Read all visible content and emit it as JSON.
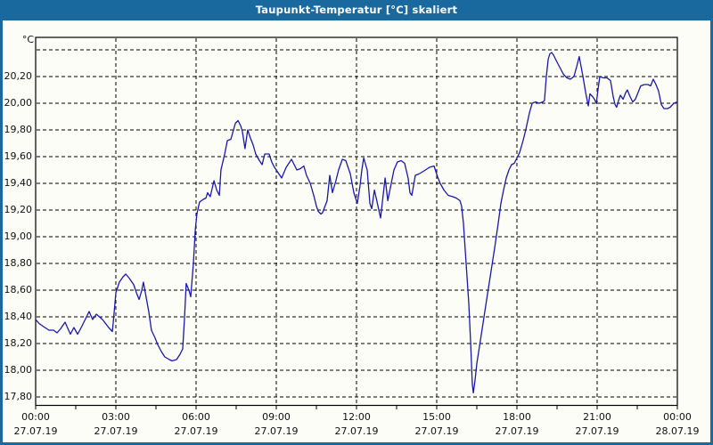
{
  "window": {
    "title": "Taupunkt-Temperatur [°C] skaliert"
  },
  "colors": {
    "titlebar": "#1a699e",
    "window_border": "#1a699e",
    "background": "#fcfdf6",
    "line": "#1818ad",
    "grid": "#000000",
    "title_text": "#ffffff",
    "label_text": "#111111"
  },
  "chart_data": {
    "type": "line",
    "title": "Taupunkt-Temperatur [°C] skaliert",
    "unit_label": "°C",
    "grid": "dashed",
    "legend": "none",
    "x_axis": {
      "range_hours": [
        0,
        24
      ],
      "tick_interval_hours": 3,
      "minor_tick_interval_hours": 1.5,
      "ticks": [
        {
          "time": "00:00",
          "date": "27.07.19"
        },
        {
          "time": "03:00",
          "date": "27.07.19"
        },
        {
          "time": "06:00",
          "date": "27.07.19"
        },
        {
          "time": "09:00",
          "date": "27.07.19"
        },
        {
          "time": "12:00",
          "date": "27.07.19"
        },
        {
          "time": "15:00",
          "date": "27.07.19"
        },
        {
          "time": "18:00",
          "date": "27.07.19"
        },
        {
          "time": "21:00",
          "date": "27.07.19"
        },
        {
          "time": "00:00",
          "date": "28.07.19"
        }
      ]
    },
    "y_axis": {
      "ylim": [
        17.73,
        20.49
      ],
      "tick_interval": 0.2,
      "ticks": [
        {
          "value": 20.4,
          "label": ""
        },
        {
          "value": 20.2,
          "label": "20,20"
        },
        {
          "value": 20.0,
          "label": "20,00"
        },
        {
          "value": 19.8,
          "label": "19,80"
        },
        {
          "value": 19.6,
          "label": "19,60"
        },
        {
          "value": 19.4,
          "label": "19,40"
        },
        {
          "value": 19.2,
          "label": "19,20"
        },
        {
          "value": 19.0,
          "label": "19,00"
        },
        {
          "value": 18.8,
          "label": "18,80"
        },
        {
          "value": 18.6,
          "label": "18,60"
        },
        {
          "value": 18.4,
          "label": "18,40"
        },
        {
          "value": 18.2,
          "label": "18,20"
        },
        {
          "value": 18.0,
          "label": "18,00"
        },
        {
          "value": 17.8,
          "label": "17,80"
        }
      ]
    },
    "series": [
      {
        "name": "Taupunkt-Temperatur",
        "points": [
          [
            0,
            18.38
          ],
          [
            0.13,
            18.35
          ],
          [
            0.27,
            18.33
          ],
          [
            0.5,
            18.3
          ],
          [
            0.67,
            18.3
          ],
          [
            0.8,
            18.28
          ],
          [
            0.93,
            18.31
          ],
          [
            1.1,
            18.36
          ],
          [
            1.3,
            18.27
          ],
          [
            1.43,
            18.32
          ],
          [
            1.57,
            18.27
          ],
          [
            1.73,
            18.33
          ],
          [
            2,
            18.44
          ],
          [
            2.13,
            18.38
          ],
          [
            2.27,
            18.42
          ],
          [
            2.5,
            18.38
          ],
          [
            2.73,
            18.32
          ],
          [
            2.87,
            18.29
          ],
          [
            2.93,
            18.42
          ],
          [
            3,
            18.58
          ],
          [
            3.13,
            18.66
          ],
          [
            3.27,
            18.7
          ],
          [
            3.37,
            18.72
          ],
          [
            3.5,
            18.69
          ],
          [
            3.67,
            18.64
          ],
          [
            3.77,
            18.58
          ],
          [
            3.87,
            18.53
          ],
          [
            3.97,
            18.6
          ],
          [
            4.03,
            18.66
          ],
          [
            4.13,
            18.55
          ],
          [
            4.23,
            18.44
          ],
          [
            4.33,
            18.3
          ],
          [
            4.47,
            18.24
          ],
          [
            4.57,
            18.19
          ],
          [
            4.7,
            18.14
          ],
          [
            4.83,
            18.1
          ],
          [
            5,
            18.08
          ],
          [
            5.1,
            18.07
          ],
          [
            5.27,
            18.08
          ],
          [
            5.4,
            18.12
          ],
          [
            5.5,
            18.16
          ],
          [
            5.57,
            18.4
          ],
          [
            5.63,
            18.65
          ],
          [
            5.73,
            18.6
          ],
          [
            5.8,
            18.55
          ],
          [
            5.9,
            18.8
          ],
          [
            5.97,
            19.05
          ],
          [
            6.03,
            19.17
          ],
          [
            6.13,
            19.26
          ],
          [
            6.27,
            19.28
          ],
          [
            6.37,
            19.29
          ],
          [
            6.43,
            19.33
          ],
          [
            6.53,
            19.3
          ],
          [
            6.67,
            19.42
          ],
          [
            6.77,
            19.35
          ],
          [
            6.87,
            19.31
          ],
          [
            6.93,
            19.5
          ],
          [
            7.07,
            19.62
          ],
          [
            7.17,
            19.72
          ],
          [
            7.3,
            19.73
          ],
          [
            7.4,
            19.8
          ],
          [
            7.47,
            19.85
          ],
          [
            7.57,
            19.87
          ],
          [
            7.67,
            19.83
          ],
          [
            7.73,
            19.79
          ],
          [
            7.83,
            19.66
          ],
          [
            7.93,
            19.8
          ],
          [
            8.03,
            19.74
          ],
          [
            8.13,
            19.69
          ],
          [
            8.23,
            19.62
          ],
          [
            8.37,
            19.57
          ],
          [
            8.47,
            19.54
          ],
          [
            8.57,
            19.62
          ],
          [
            8.73,
            19.62
          ],
          [
            8.83,
            19.56
          ],
          [
            8.93,
            19.52
          ],
          [
            9,
            19.5
          ],
          [
            9.1,
            19.47
          ],
          [
            9.2,
            19.44
          ],
          [
            9.37,
            19.52
          ],
          [
            9.57,
            19.58
          ],
          [
            9.77,
            19.5
          ],
          [
            9.9,
            19.51
          ],
          [
            10.03,
            19.53
          ],
          [
            10.13,
            19.46
          ],
          [
            10.27,
            19.4
          ],
          [
            10.4,
            19.31
          ],
          [
            10.5,
            19.23
          ],
          [
            10.57,
            19.19
          ],
          [
            10.67,
            19.17
          ],
          [
            10.73,
            19.18
          ],
          [
            10.9,
            19.27
          ],
          [
            11,
            19.46
          ],
          [
            11.1,
            19.33
          ],
          [
            11.23,
            19.42
          ],
          [
            11.33,
            19.5
          ],
          [
            11.47,
            19.58
          ],
          [
            11.6,
            19.57
          ],
          [
            11.77,
            19.47
          ],
          [
            11.9,
            19.33
          ],
          [
            12.03,
            19.25
          ],
          [
            12.13,
            19.38
          ],
          [
            12.2,
            19.5
          ],
          [
            12.27,
            19.59
          ],
          [
            12.4,
            19.5
          ],
          [
            12.5,
            19.25
          ],
          [
            12.57,
            19.21
          ],
          [
            12.67,
            19.35
          ],
          [
            12.77,
            19.26
          ],
          [
            12.9,
            19.14
          ],
          [
            13.07,
            19.44
          ],
          [
            13.17,
            19.27
          ],
          [
            13.3,
            19.4
          ],
          [
            13.4,
            19.5
          ],
          [
            13.53,
            19.56
          ],
          [
            13.67,
            19.57
          ],
          [
            13.8,
            19.55
          ],
          [
            13.93,
            19.44
          ],
          [
            14,
            19.33
          ],
          [
            14.07,
            19.31
          ],
          [
            14.2,
            19.46
          ],
          [
            14.33,
            19.47
          ],
          [
            14.5,
            19.49
          ],
          [
            14.73,
            19.52
          ],
          [
            14.9,
            19.53
          ],
          [
            15.03,
            19.45
          ],
          [
            15.13,
            19.4
          ],
          [
            15.27,
            19.35
          ],
          [
            15.43,
            19.31
          ],
          [
            15.6,
            19.3
          ],
          [
            15.73,
            19.29
          ],
          [
            15.87,
            19.27
          ],
          [
            15.93,
            19.23
          ],
          [
            16,
            19.1
          ],
          [
            16.1,
            18.8
          ],
          [
            16.2,
            18.5
          ],
          [
            16.27,
            18.2
          ],
          [
            16.33,
            17.9
          ],
          [
            16.37,
            17.83
          ],
          [
            16.43,
            17.92
          ],
          [
            16.5,
            18.05
          ],
          [
            16.67,
            18.27
          ],
          [
            16.83,
            18.48
          ],
          [
            17,
            18.7
          ],
          [
            17.17,
            18.92
          ],
          [
            17.3,
            19.1
          ],
          [
            17.4,
            19.25
          ],
          [
            17.5,
            19.35
          ],
          [
            17.6,
            19.44
          ],
          [
            17.7,
            19.5
          ],
          [
            17.8,
            19.54
          ],
          [
            17.9,
            19.55
          ],
          [
            18.1,
            19.63
          ],
          [
            18.23,
            19.72
          ],
          [
            18.33,
            19.8
          ],
          [
            18.47,
            19.93
          ],
          [
            18.57,
            20
          ],
          [
            18.7,
            20.01
          ],
          [
            18.83,
            20
          ],
          [
            18.97,
            20.01
          ],
          [
            19.03,
            20.02
          ],
          [
            19.1,
            20.2
          ],
          [
            19.17,
            20.33
          ],
          [
            19.23,
            20.37
          ],
          [
            19.3,
            20.38
          ],
          [
            19.37,
            20.36
          ],
          [
            19.47,
            20.32
          ],
          [
            19.6,
            20.27
          ],
          [
            19.73,
            20.22
          ],
          [
            19.87,
            20.19
          ],
          [
            20,
            20.18
          ],
          [
            20.13,
            20.2
          ],
          [
            20.23,
            20.27
          ],
          [
            20.33,
            20.35
          ],
          [
            20.47,
            20.2
          ],
          [
            20.57,
            20.08
          ],
          [
            20.67,
            19.98
          ],
          [
            20.73,
            20.07
          ],
          [
            20.83,
            20.05
          ],
          [
            20.9,
            20.03
          ],
          [
            20.97,
            20
          ],
          [
            21.03,
            20.1
          ],
          [
            21.1,
            20.2
          ],
          [
            21.23,
            20.19
          ],
          [
            21.37,
            20.19
          ],
          [
            21.5,
            20.17
          ],
          [
            21.6,
            20.05
          ],
          [
            21.67,
            19.99
          ],
          [
            21.73,
            19.97
          ],
          [
            21.8,
            20.02
          ],
          [
            21.87,
            20.06
          ],
          [
            21.97,
            20.03
          ],
          [
            22.07,
            20.08
          ],
          [
            22.13,
            20.1
          ],
          [
            22.23,
            20.05
          ],
          [
            22.33,
            20.01
          ],
          [
            22.43,
            20.03
          ],
          [
            22.53,
            20.08
          ],
          [
            22.63,
            20.13
          ],
          [
            22.77,
            20.14
          ],
          [
            22.9,
            20.14
          ],
          [
            23,
            20.13
          ],
          [
            23.1,
            20.18
          ],
          [
            23.2,
            20.14
          ],
          [
            23.3,
            20.09
          ],
          [
            23.4,
            19.99
          ],
          [
            23.5,
            19.96
          ],
          [
            23.63,
            19.96
          ],
          [
            23.73,
            19.97
          ],
          [
            23.87,
            20
          ],
          [
            24,
            20.01
          ]
        ]
      }
    ]
  }
}
